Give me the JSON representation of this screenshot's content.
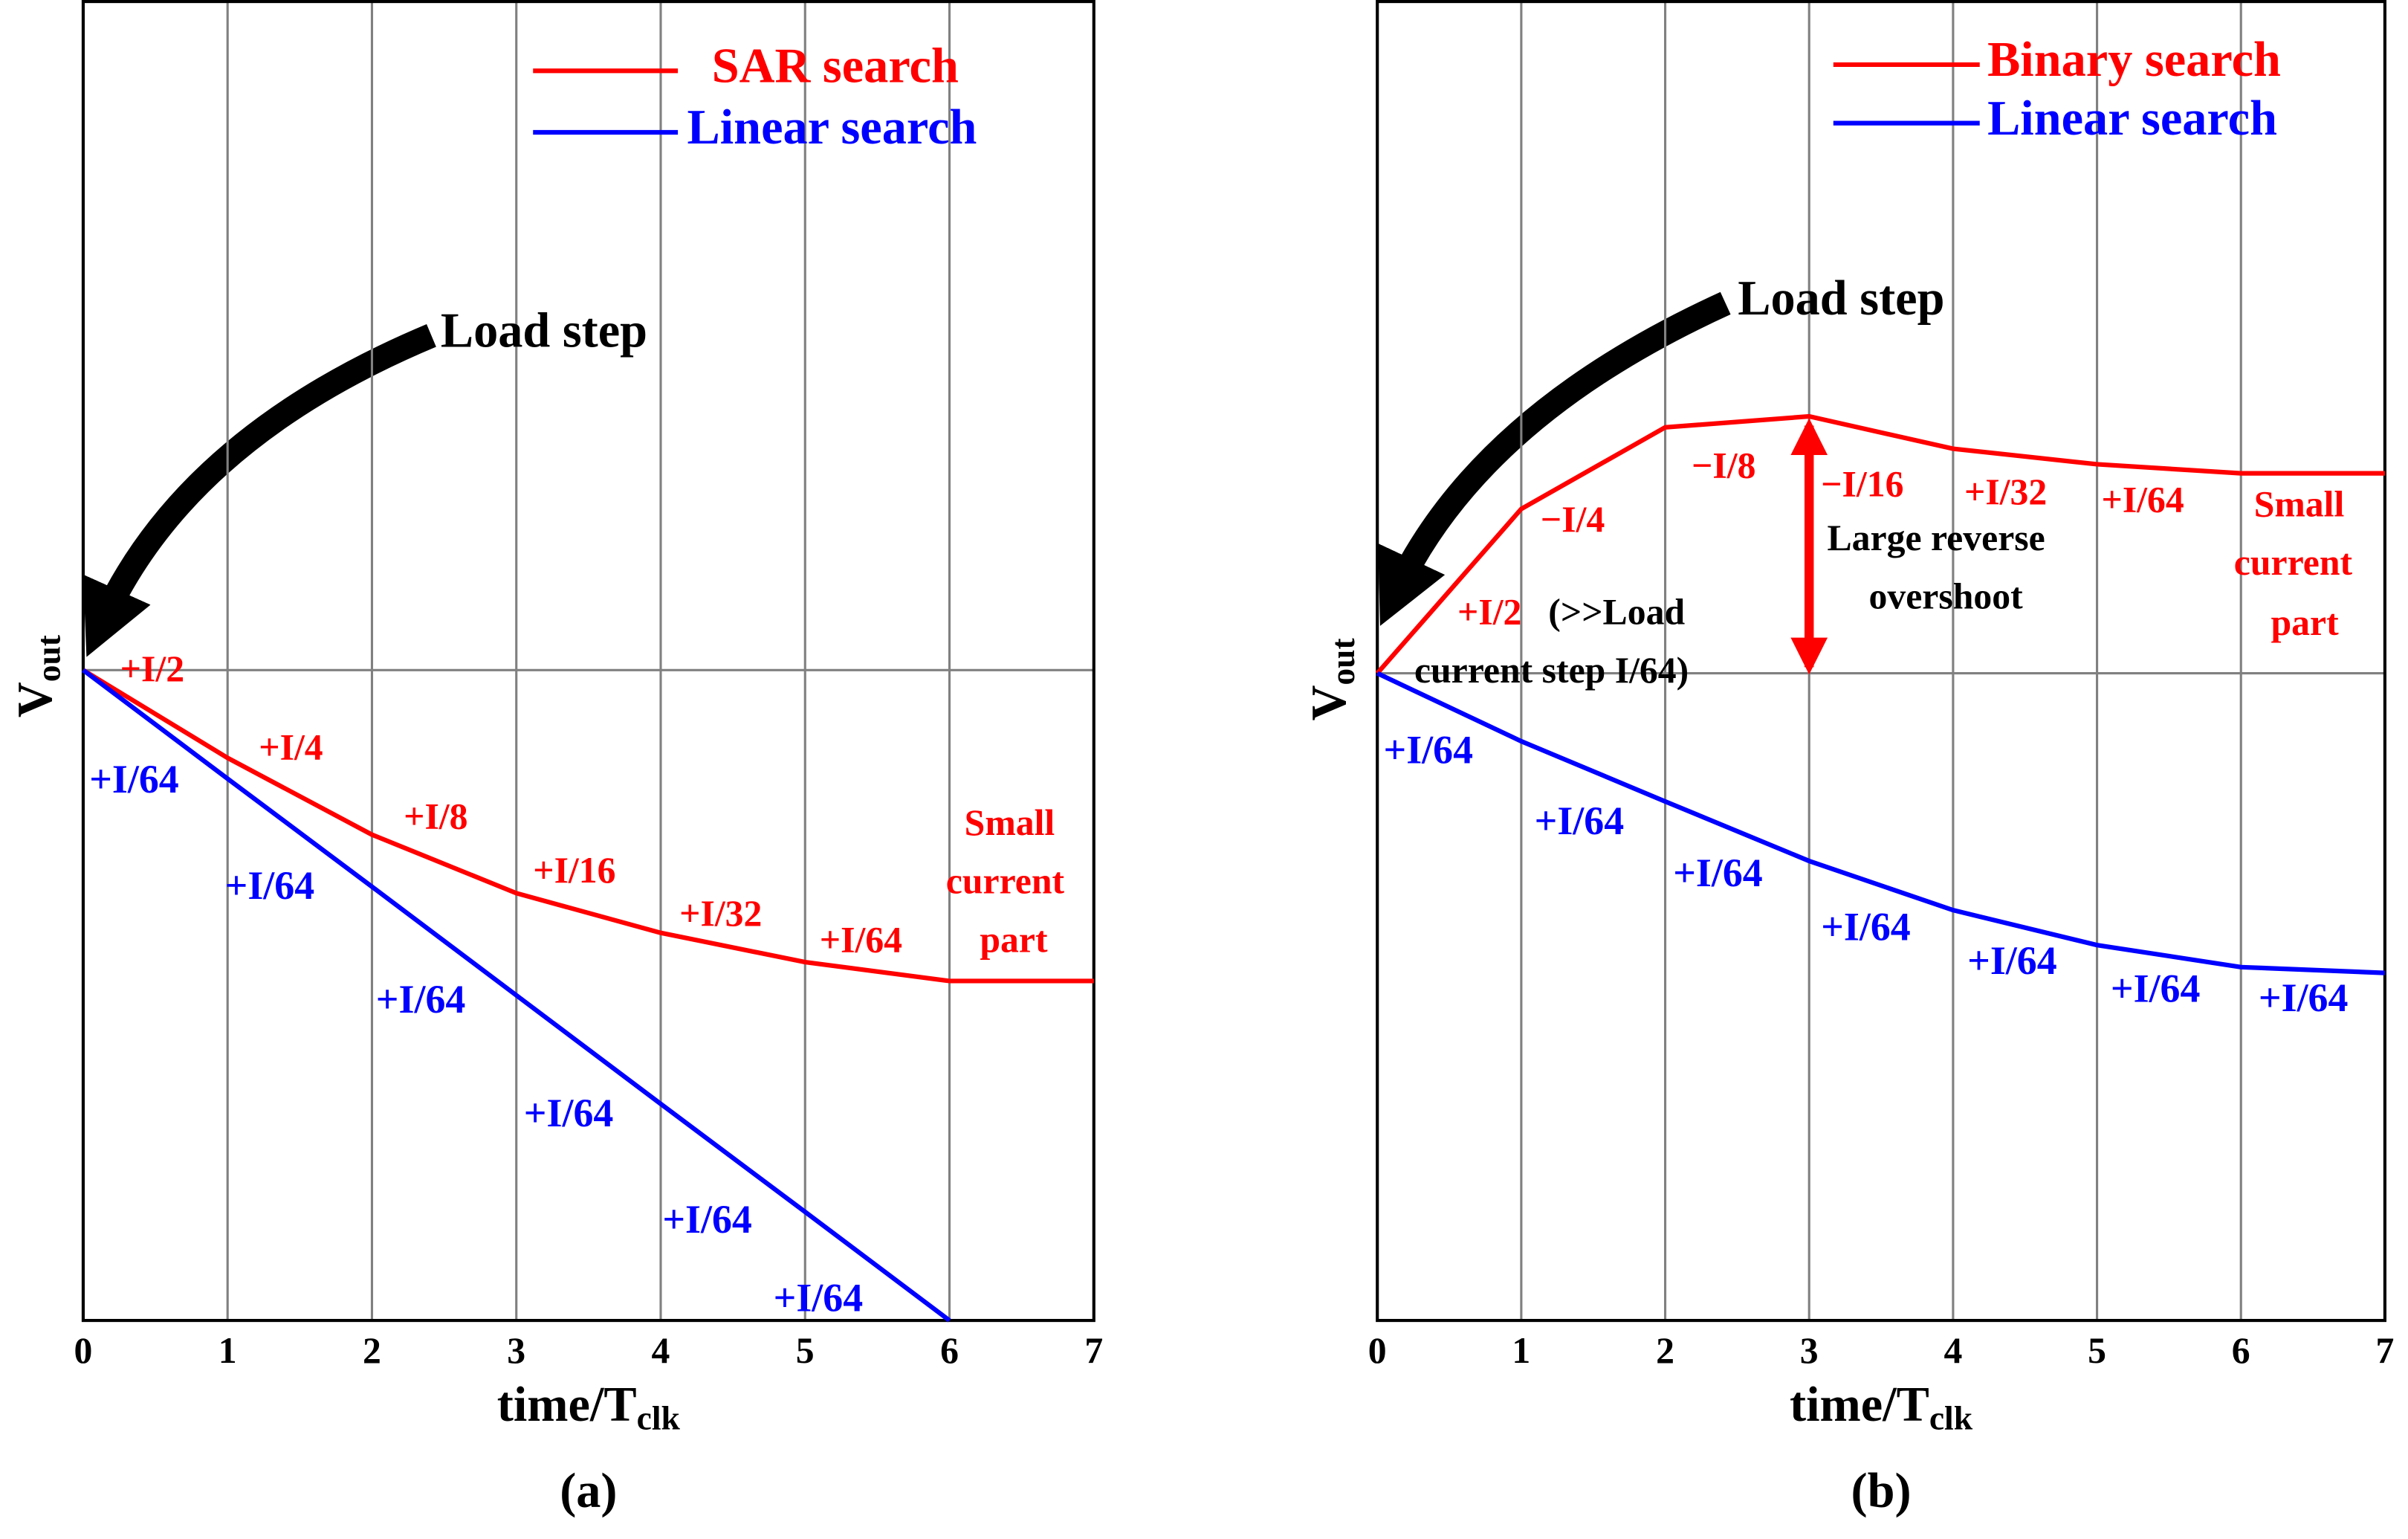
{
  "chart_data": [
    {
      "type": "line",
      "caption": "(a)",
      "x_label": {
        "main": "time/T",
        "sub": "clk"
      },
      "y_label": {
        "main": "V",
        "sub": "out"
      },
      "x": [
        0,
        1,
        2,
        3,
        4,
        5,
        6,
        7
      ],
      "xlim": [
        0,
        7
      ],
      "xticks": [
        0,
        1,
        2,
        3,
        4,
        5,
        6,
        7
      ],
      "ylim": [
        -1,
        1.028
      ],
      "hline": 0,
      "grid": true,
      "legend": "upper right",
      "series": [
        {
          "name": "SAR search",
          "color": "#ff0000",
          "values": [
            0,
            -0.135,
            -0.253,
            -0.343,
            -0.404,
            -0.449,
            -0.478,
            -0.478
          ]
        },
        {
          "name": "Linear search",
          "color": "#0000ff",
          "values": [
            0,
            -0.167,
            -0.333,
            -0.5,
            -0.667,
            -0.833,
            -1,
            null
          ]
        }
      ],
      "annotations": [
        {
          "text": "Load step",
          "color": "#000000"
        },
        {
          "text": "+I/2",
          "color": "#ff0000"
        },
        {
          "text": "+I/4",
          "color": "#ff0000"
        },
        {
          "text": "+I/8",
          "color": "#ff0000"
        },
        {
          "text": "+I/16",
          "color": "#ff0000"
        },
        {
          "text": "+I/32",
          "color": "#ff0000"
        },
        {
          "text": "+I/64",
          "color": "#ff0000"
        },
        {
          "text": "Small",
          "color": "#ff0000"
        },
        {
          "text": "current",
          "color": "#ff0000"
        },
        {
          "text": "part",
          "color": "#ff0000"
        },
        {
          "text": "+I/64",
          "color": "#0000ff"
        },
        {
          "text": "+I/64",
          "color": "#0000ff"
        },
        {
          "text": "+I/64",
          "color": "#0000ff"
        },
        {
          "text": "+I/64",
          "color": "#0000ff"
        },
        {
          "text": "+I/64",
          "color": "#0000ff"
        },
        {
          "text": "+I/64",
          "color": "#0000ff"
        }
      ]
    },
    {
      "type": "line",
      "caption": "(b)",
      "x_label": {
        "main": "time/T",
        "sub": "clk"
      },
      "y_label": {
        "main": "V",
        "sub": "out"
      },
      "x": [
        0,
        1,
        2,
        3,
        4,
        5,
        6,
        7
      ],
      "xlim": [
        0,
        7
      ],
      "xticks": [
        0,
        1,
        2,
        3,
        4,
        5,
        6,
        7
      ],
      "ylim": [
        -1,
        1.038
      ],
      "hline": 0,
      "grid": true,
      "legend": "upper right",
      "series": [
        {
          "name": "Binary search",
          "color": "#ff0000",
          "values": [
            0,
            0.254,
            0.38,
            0.397,
            0.347,
            0.323,
            0.309,
            0.309
          ]
        },
        {
          "name": "Linear search",
          "color": "#0000ff",
          "values": [
            0,
            -0.105,
            -0.198,
            -0.29,
            -0.366,
            -0.42,
            -0.454,
            -0.463
          ]
        }
      ],
      "annotations": [
        {
          "text": "Load step",
          "color": "#000000"
        },
        {
          "text": "−I/4",
          "color": "#ff0000"
        },
        {
          "text": "−I/8",
          "color": "#ff0000"
        },
        {
          "text": "−I/16",
          "color": "#ff0000"
        },
        {
          "text": "+I/32",
          "color": "#ff0000"
        },
        {
          "text": "+I/64",
          "color": "#ff0000"
        },
        {
          "text": "Small",
          "color": "#ff0000"
        },
        {
          "text": "current",
          "color": "#ff0000"
        },
        {
          "text": "part",
          "color": "#ff0000"
        },
        {
          "text": "+I/2",
          "color": "#ff0000"
        },
        {
          "text": "(>>Load",
          "color": "#000000"
        },
        {
          "text": "current step I/64)",
          "color": "#000000"
        },
        {
          "text": "Large reverse",
          "color": "#000000"
        },
        {
          "text": "overshoot",
          "color": "#000000"
        },
        {
          "text": "+I/64",
          "color": "#0000ff"
        },
        {
          "text": "+I/64",
          "color": "#0000ff"
        },
        {
          "text": "+I/64",
          "color": "#0000ff"
        },
        {
          "text": "+I/64",
          "color": "#0000ff"
        },
        {
          "text": "+I/64",
          "color": "#0000ff"
        },
        {
          "text": "+I/64",
          "color": "#0000ff"
        },
        {
          "text": "+I/64",
          "color": "#0000ff"
        }
      ]
    }
  ]
}
